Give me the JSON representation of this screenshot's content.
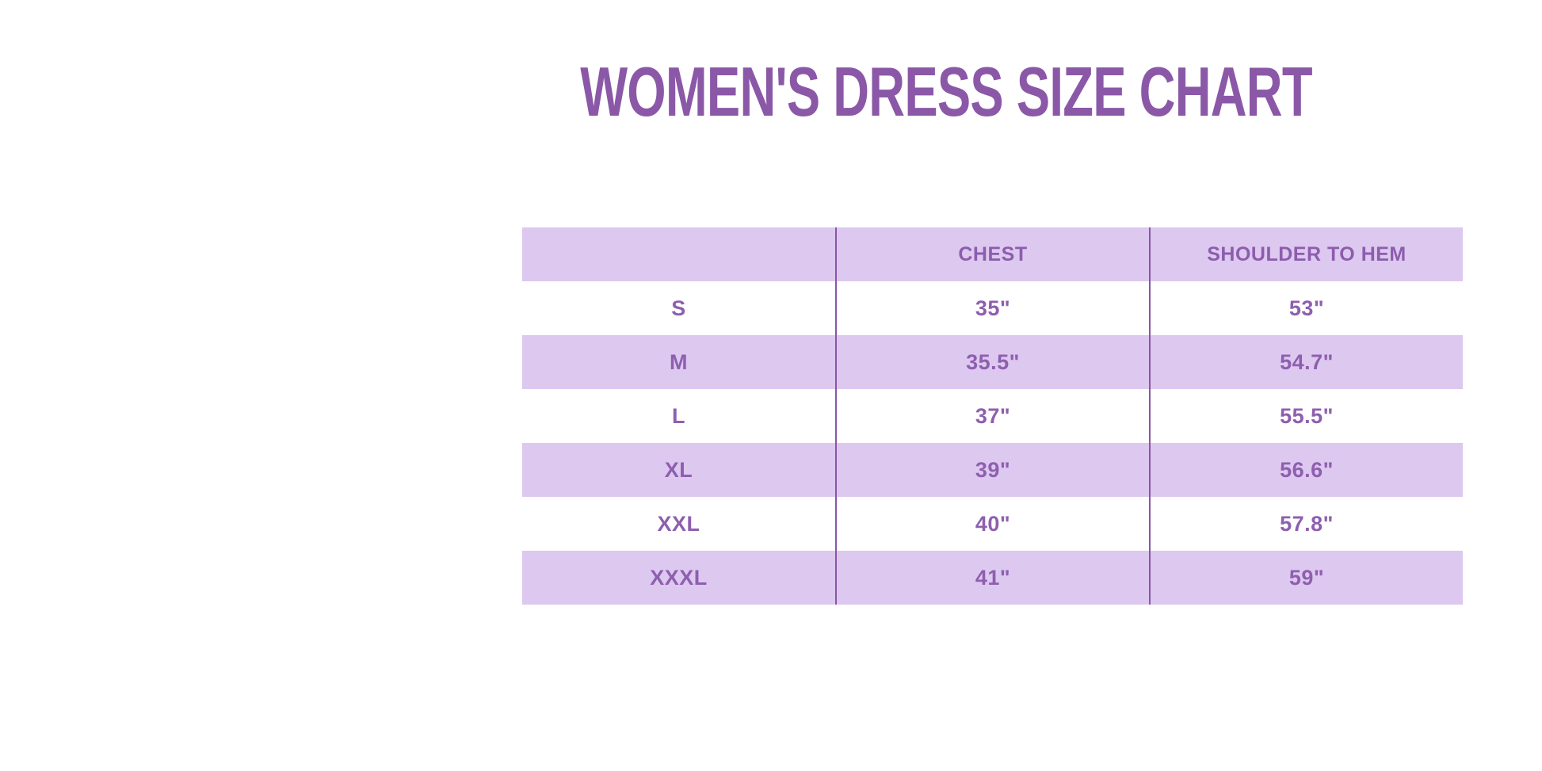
{
  "page": {
    "title": "WOMEN'S DRESS SIZE CHART"
  },
  "colors": {
    "title_purple": "#8B58A8",
    "cell_text_purple": "#8E5FAE",
    "row_lavender": "#DDC8F0",
    "divider_purple": "#8A55A6",
    "background": "#FFFFFF"
  },
  "table": {
    "headers": [
      "",
      "CHEST",
      "SHOULDER TO HEM"
    ],
    "rows": [
      {
        "size": "S",
        "chest": "35\"",
        "hem": "53\""
      },
      {
        "size": "M",
        "chest": "35.5\"",
        "hem": "54.7\""
      },
      {
        "size": "L",
        "chest": "37\"",
        "hem": "55.5\""
      },
      {
        "size": "XL",
        "chest": "39\"",
        "hem": "56.6\""
      },
      {
        "size": "XXL",
        "chest": "40\"",
        "hem": "57.8\""
      },
      {
        "size": "XXXL",
        "chest": "41\"",
        "hem": "59\""
      }
    ]
  },
  "chart_data": {
    "type": "table",
    "title": "WOMEN'S DRESS SIZE CHART",
    "columns": [
      "",
      "CHEST",
      "SHOULDER TO HEM"
    ],
    "rows": [
      [
        "S",
        "35\"",
        "53\""
      ],
      [
        "M",
        "35.5\"",
        "54.7\""
      ],
      [
        "L",
        "37\"",
        "55.5\""
      ],
      [
        "XL",
        "39\"",
        "56.6\""
      ],
      [
        "XXL",
        "40\"",
        "57.8\""
      ],
      [
        "XXXL",
        "41\"",
        "59\""
      ]
    ],
    "units": "inches",
    "sizes": [
      "S",
      "M",
      "L",
      "XL",
      "XXL",
      "XXXL"
    ],
    "chest_values": [
      35,
      35.5,
      37,
      39,
      40,
      41
    ],
    "shoulder_to_hem_values": [
      53,
      54.7,
      55.5,
      56.6,
      57.8,
      59
    ],
    "layout": {
      "striped_rows": true,
      "stripe_color": "#DDC8F0",
      "header_background": "#DDC8F0",
      "column_dividers": true
    }
  }
}
